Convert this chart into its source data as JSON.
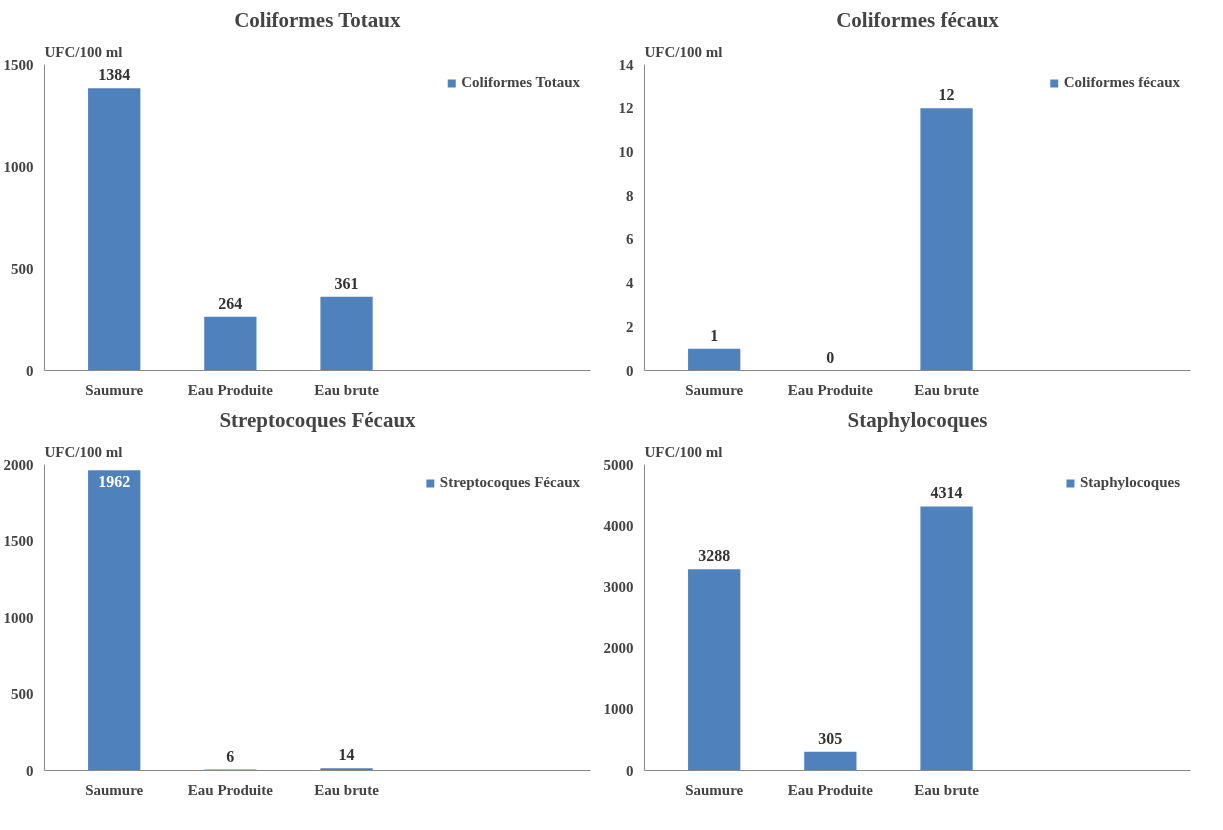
{
  "chart_data": [
    {
      "type": "bar",
      "title": "Coliformes Totaux",
      "ylabel": "UFC/100 ml",
      "categories": [
        "Saumure",
        "Eau Produite",
        "Eau brute"
      ],
      "series": [
        {
          "name": "Coliformes Totaux",
          "color": "#4f81bd",
          "values": [
            1384,
            264,
            361
          ]
        }
      ],
      "ylim": [
        0,
        1500
      ],
      "yticks": [
        0,
        500,
        1000,
        1500
      ],
      "data_labels": true,
      "legend": "top right"
    },
    {
      "type": "bar",
      "title": "Coliformes fécaux",
      "ylabel": "UFC/100 ml",
      "categories": [
        "Saumure",
        "Eau Produite",
        "Eau brute"
      ],
      "series": [
        {
          "name": "Coliformes fécaux",
          "color": "#4f81bd",
          "values": [
            1,
            0,
            12
          ]
        }
      ],
      "ylim": [
        0,
        14
      ],
      "yticks": [
        0,
        2,
        4,
        6,
        8,
        10,
        12,
        14
      ],
      "data_labels": true,
      "legend": "top right"
    },
    {
      "type": "bar",
      "title": "Streptocoques Fécaux",
      "ylabel": "UFC/100 ml",
      "categories": [
        "Saumure",
        "Eau Produite",
        "Eau brute"
      ],
      "series": [
        {
          "name": "Streptocoques Fécaux",
          "color": "#4f81bd",
          "values": [
            1962,
            6,
            14
          ]
        }
      ],
      "ylim": [
        0,
        2000
      ],
      "yticks": [
        0,
        500,
        1000,
        1500,
        2000
      ],
      "data_labels": true,
      "legend": "top right"
    },
    {
      "type": "bar",
      "title": "Staphylocoques",
      "ylabel": "UFC/100 ml",
      "categories": [
        "Saumure",
        "Eau Produite",
        "Eau brute"
      ],
      "series": [
        {
          "name": "Staphylocoques",
          "color": "#4f81bd",
          "values": [
            3288,
            305,
            4314
          ]
        }
      ],
      "ylim": [
        0,
        5000
      ],
      "yticks": [
        0,
        1000,
        2000,
        3000,
        4000,
        5000
      ],
      "data_labels": true,
      "legend": "top right"
    }
  ]
}
